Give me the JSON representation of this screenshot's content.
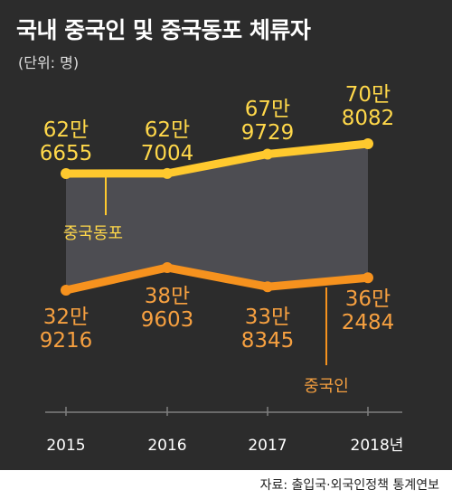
{
  "title": "국내 중국인 및 중국동포 체류자",
  "unit": "(단위: 명)",
  "source": "자료: 출입국·외국인정책 통계연보",
  "chart_data": {
    "type": "line",
    "categories": [
      "2015",
      "2016",
      "2017",
      "2018년"
    ],
    "series": [
      {
        "name": "중국동포",
        "color": "#ffc92e",
        "values": [
          626655,
          627004,
          679729,
          708082
        ],
        "labels": [
          [
            "62만",
            "6655"
          ],
          [
            "62만",
            "7004"
          ],
          [
            "67만",
            "9729"
          ],
          [
            "70만",
            "8082"
          ]
        ]
      },
      {
        "name": "중국인",
        "color": "#f6921e",
        "values": [
          329216,
          389603,
          338345,
          362484
        ],
        "labels": [
          [
            "32만",
            "9216"
          ],
          [
            "38만",
            "9603"
          ],
          [
            "33만",
            "8345"
          ],
          [
            "36만",
            "2484"
          ]
        ]
      }
    ],
    "area_fill": "#4d4d52",
    "axis_line": "#7f7f7f",
    "label_color_top": "#ffd84a",
    "label_color_bottom": "#f6a040"
  }
}
